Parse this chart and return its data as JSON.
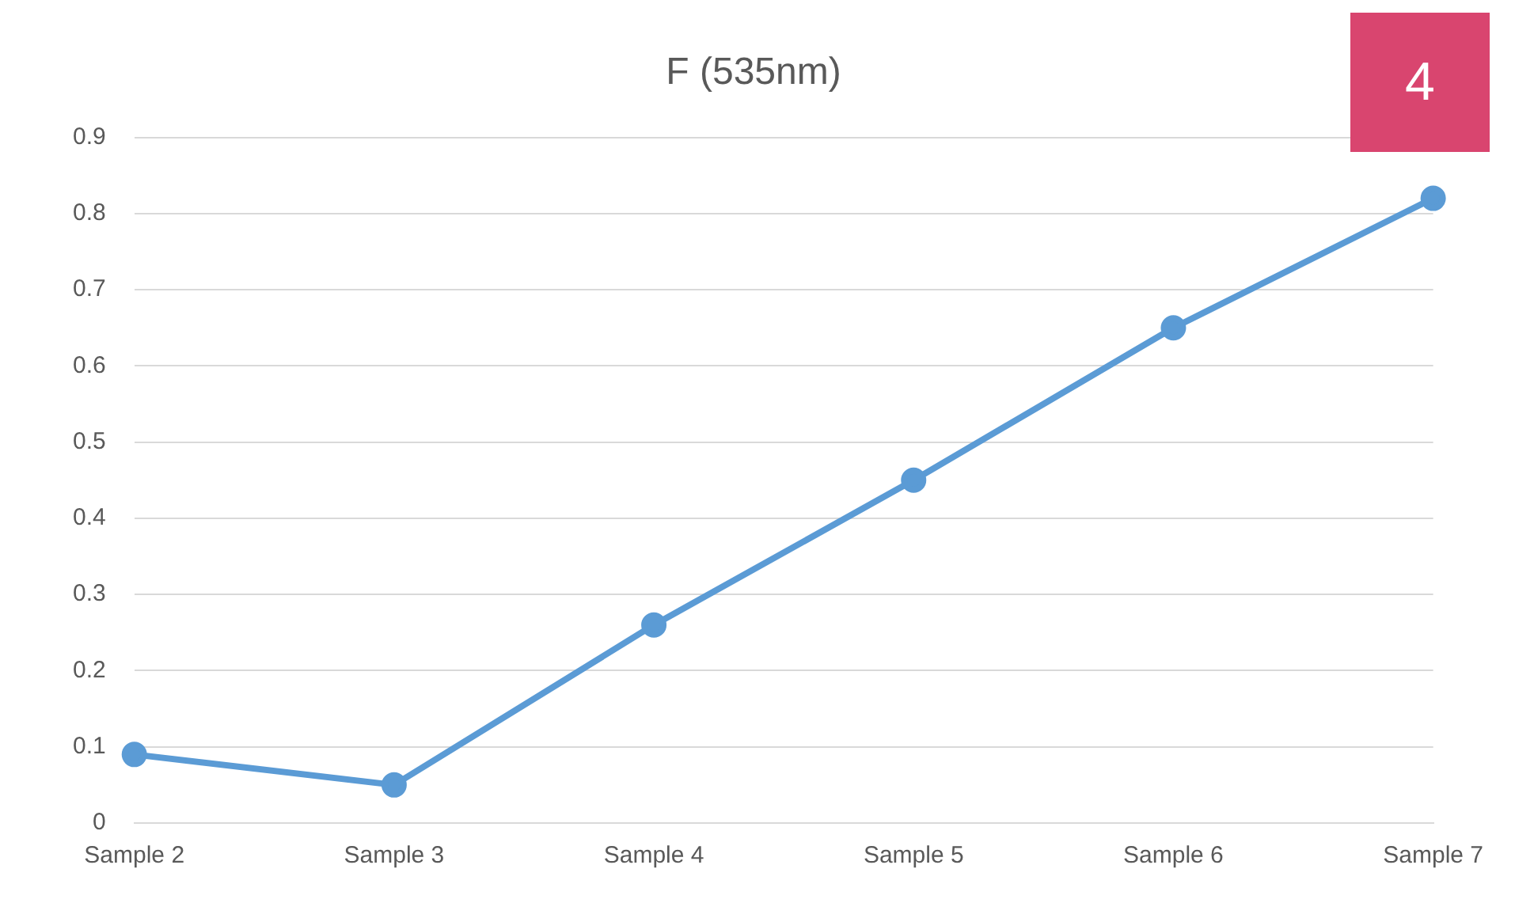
{
  "chart_data": {
    "type": "line",
    "title": "F (535nm)",
    "categories": [
      "Sample 2",
      "Sample 3",
      "Sample 4",
      "Sample 5",
      "Sample 6",
      "Sample 7"
    ],
    "series": [
      {
        "color": "#5b9bd5",
        "values": [
          0.09,
          0.05,
          0.26,
          0.45,
          0.65,
          0.82
        ]
      }
    ],
    "ylim": [
      0,
      0.9
    ],
    "yticks": [
      0,
      0.1,
      0.2,
      0.3,
      0.4,
      0.5,
      0.6,
      0.7,
      0.8,
      0.9
    ],
    "grid": "y",
    "legend": false,
    "marker": "circle",
    "line_style": "solid",
    "annotations": [
      "4"
    ]
  }
}
